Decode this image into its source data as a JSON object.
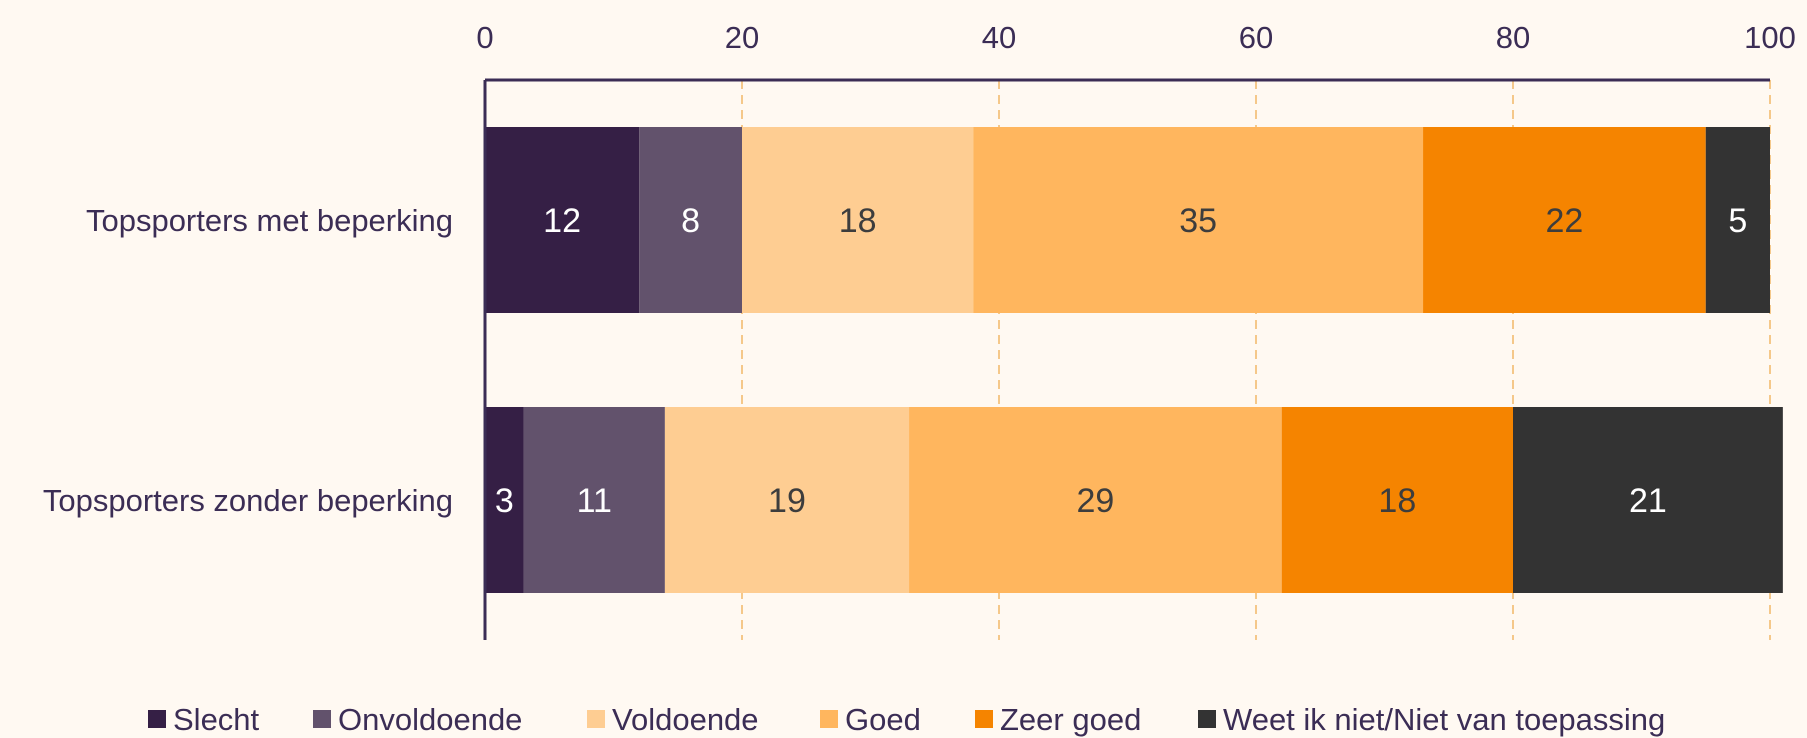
{
  "chart_data": {
    "type": "bar",
    "orientation": "horizontal",
    "stacked": true,
    "title": "",
    "xlabel": "",
    "ylabel": "",
    "xlim": [
      0,
      100
    ],
    "x_ticks": [
      0,
      20,
      40,
      60,
      80,
      100
    ],
    "grid": "vertical dashed",
    "legend_position": "bottom",
    "categories": [
      "Topsporters met beperking",
      "Topsporters zonder beperking"
    ],
    "series": [
      {
        "name": "Slecht",
        "values": [
          12,
          3
        ],
        "color": "#351f45",
        "label_color": "#ffffff"
      },
      {
        "name": "Onvoldoende",
        "values": [
          8,
          11
        ],
        "color": "#62526c",
        "label_color": "#ffffff"
      },
      {
        "name": "Voldoende",
        "values": [
          18,
          19
        ],
        "color": "#fecd92",
        "label_color": "#3d3d3d"
      },
      {
        "name": "Goed",
        "values": [
          35,
          29
        ],
        "color": "#ffb65e",
        "label_color": "#3d3d3d"
      },
      {
        "name": "Zeer goed",
        "values": [
          22,
          18
        ],
        "color": "#f58400",
        "label_color": "#3d3d3d"
      },
      {
        "name": "Weet ik niet/Niet van toepassing",
        "values": [
          5,
          21
        ],
        "color": "#333333",
        "label_color": "#ffffff"
      }
    ]
  }
}
